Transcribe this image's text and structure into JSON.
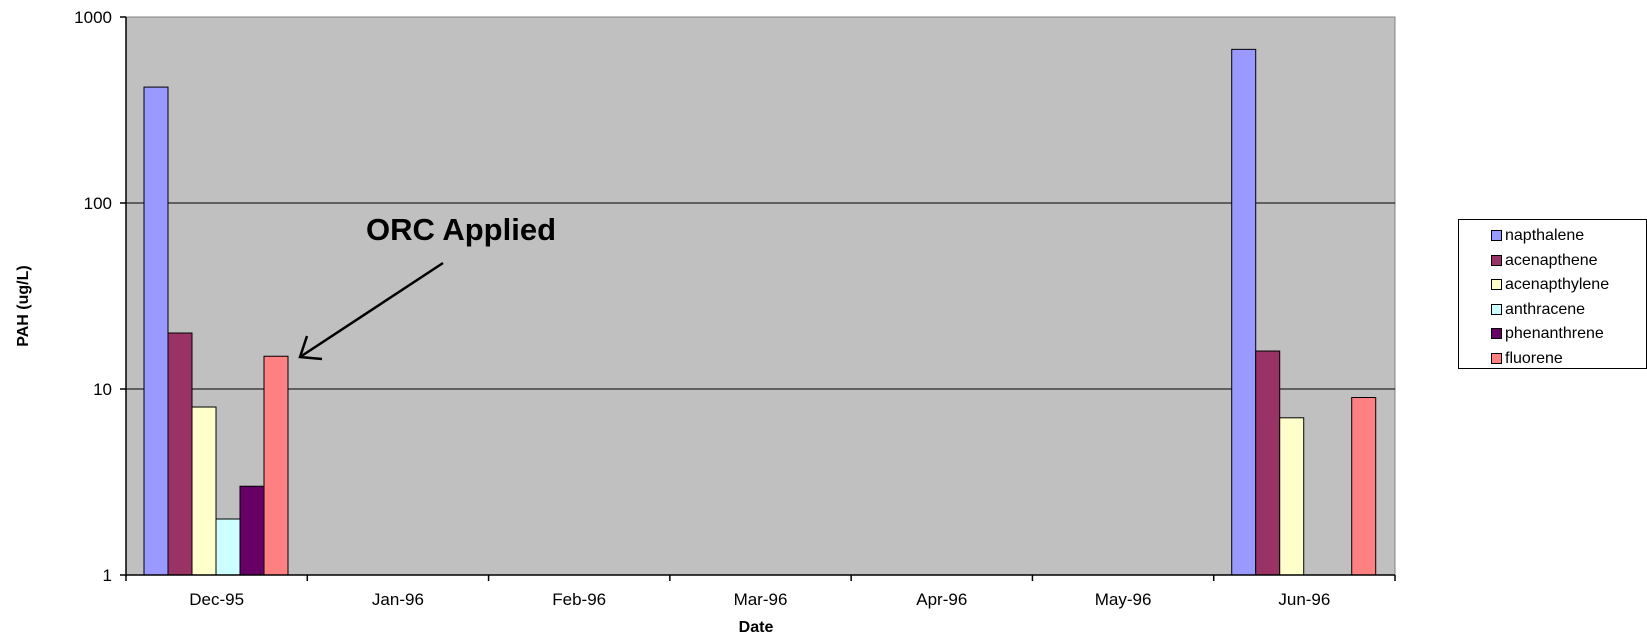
{
  "chart_data": {
    "type": "bar",
    "xlabel": "Date",
    "ylabel": "PAH (ug/L)",
    "yscale": "log",
    "ylim": [
      1,
      1000
    ],
    "yticks": [
      "1",
      "10",
      "100",
      "1000"
    ],
    "categories": [
      "Dec-95",
      "Jan-96",
      "Feb-96",
      "Mar-96",
      "Apr-96",
      "May-96",
      "Jun-96"
    ],
    "grid": true,
    "legend_position": "right",
    "series": [
      {
        "name": "napthalene",
        "color": "#9999FF",
        "values": [
          420,
          null,
          null,
          null,
          null,
          null,
          670
        ]
      },
      {
        "name": "acenapthene",
        "color": "#993366",
        "values": [
          20,
          null,
          null,
          null,
          null,
          null,
          16
        ]
      },
      {
        "name": "acenapthylene",
        "color": "#FFFFCC",
        "values": [
          8,
          null,
          null,
          null,
          null,
          null,
          7
        ]
      },
      {
        "name": "anthracene",
        "color": "#CCFFFF",
        "values": [
          2,
          null,
          null,
          null,
          null,
          null,
          null
        ]
      },
      {
        "name": "phenanthrene",
        "color": "#660066",
        "values": [
          3,
          null,
          null,
          null,
          null,
          null,
          null
        ]
      },
      {
        "name": "fluorene",
        "color": "#FF8080",
        "values": [
          15,
          null,
          null,
          null,
          null,
          null,
          9
        ]
      }
    ],
    "annotation": {
      "text": "ORC Applied",
      "points_to_category": "Dec-95",
      "points_to_series": "fluorene"
    },
    "plot_background": "#C0C0C0"
  }
}
